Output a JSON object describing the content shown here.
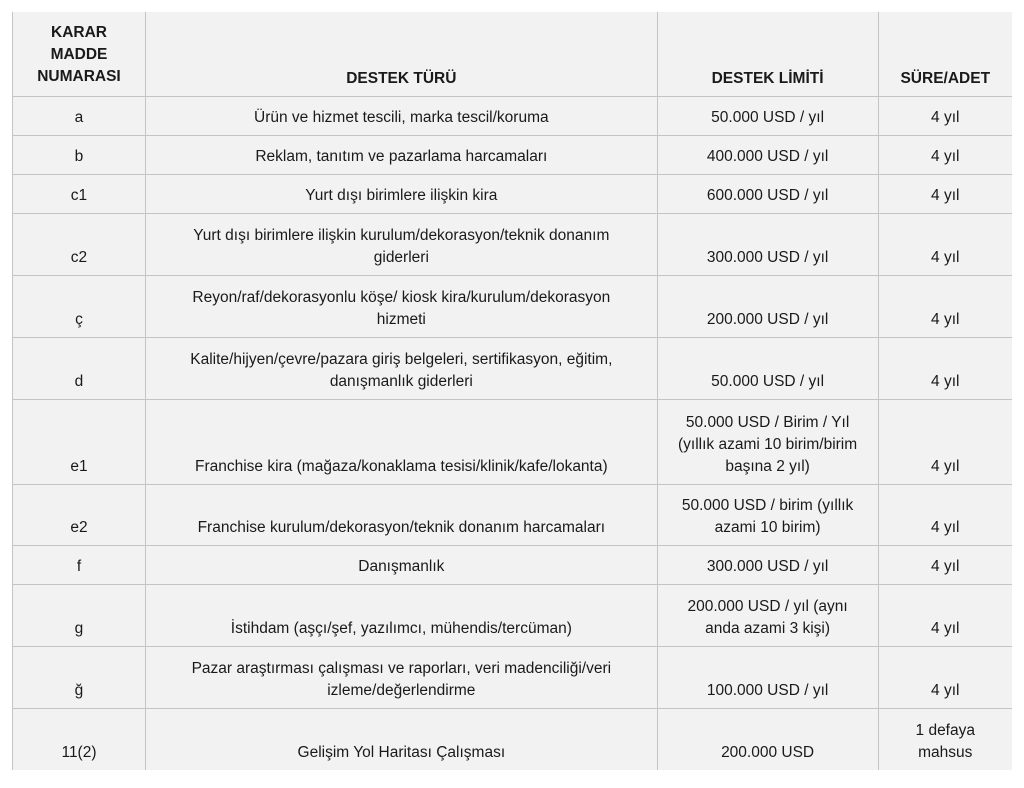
{
  "headers": [
    "KARAR MADDE NUMARASI",
    "DESTEK TÜRÜ",
    "DESTEK LİMİTİ",
    "SÜRE/ADET"
  ],
  "rows": [
    [
      "a",
      "Ürün ve hizmet tescili, marka tescil/koruma",
      "50.000 USD / yıl",
      "4 yıl"
    ],
    [
      "b",
      "Reklam, tanıtım ve pazarlama harcamaları",
      "400.000 USD / yıl",
      "4 yıl"
    ],
    [
      "c1",
      "Yurt dışı birimlere ilişkin kira",
      "600.000 USD / yıl",
      "4 yıl"
    ],
    [
      "c2",
      "Yurt dışı birimlere ilişkin kurulum/dekorasyon/teknik donanım giderleri",
      "300.000 USD / yıl",
      "4 yıl"
    ],
    [
      "ç",
      "Reyon/raf/dekorasyonlu köşe/ kiosk kira/kurulum/dekorasyon hizmeti",
      "200.000 USD / yıl",
      "4 yıl"
    ],
    [
      "d",
      "Kalite/hijyen/çevre/pazara giriş belgeleri, sertifikasyon, eğitim, danışmanlık giderleri",
      "50.000 USD / yıl",
      "4 yıl"
    ],
    [
      "e1",
      "Franchise kira (mağaza/konaklama tesisi/klinik/kafe/lokanta)",
      "50.000 USD / Birim / Yıl (yıllık azami 10 birim/birim başına 2 yıl)",
      "4 yıl"
    ],
    [
      "e2",
      "Franchise kurulum/dekorasyon/teknik donanım harcamaları",
      "50.000 USD / birim (yıllık azami 10 birim)",
      "4 yıl"
    ],
    [
      "f",
      "Danışmanlık",
      "300.000 USD / yıl",
      "4 yıl"
    ],
    [
      "g",
      "İstihdam (aşçı/şef, yazılımcı, mühendis/tercüman)",
      "200.000 USD / yıl (aynı anda azami 3 kişi)",
      "4 yıl"
    ],
    [
      "ğ",
      "Pazar araştırması çalışması ve raporları, veri madenciliği/veri izleme/değerlendirme",
      "100.000 USD / yıl",
      "4 yıl"
    ],
    [
      "11(2)",
      "Gelişim Yol Haritası Çalışması",
      "200.000 USD",
      "1 defaya mahsus"
    ]
  ]
}
